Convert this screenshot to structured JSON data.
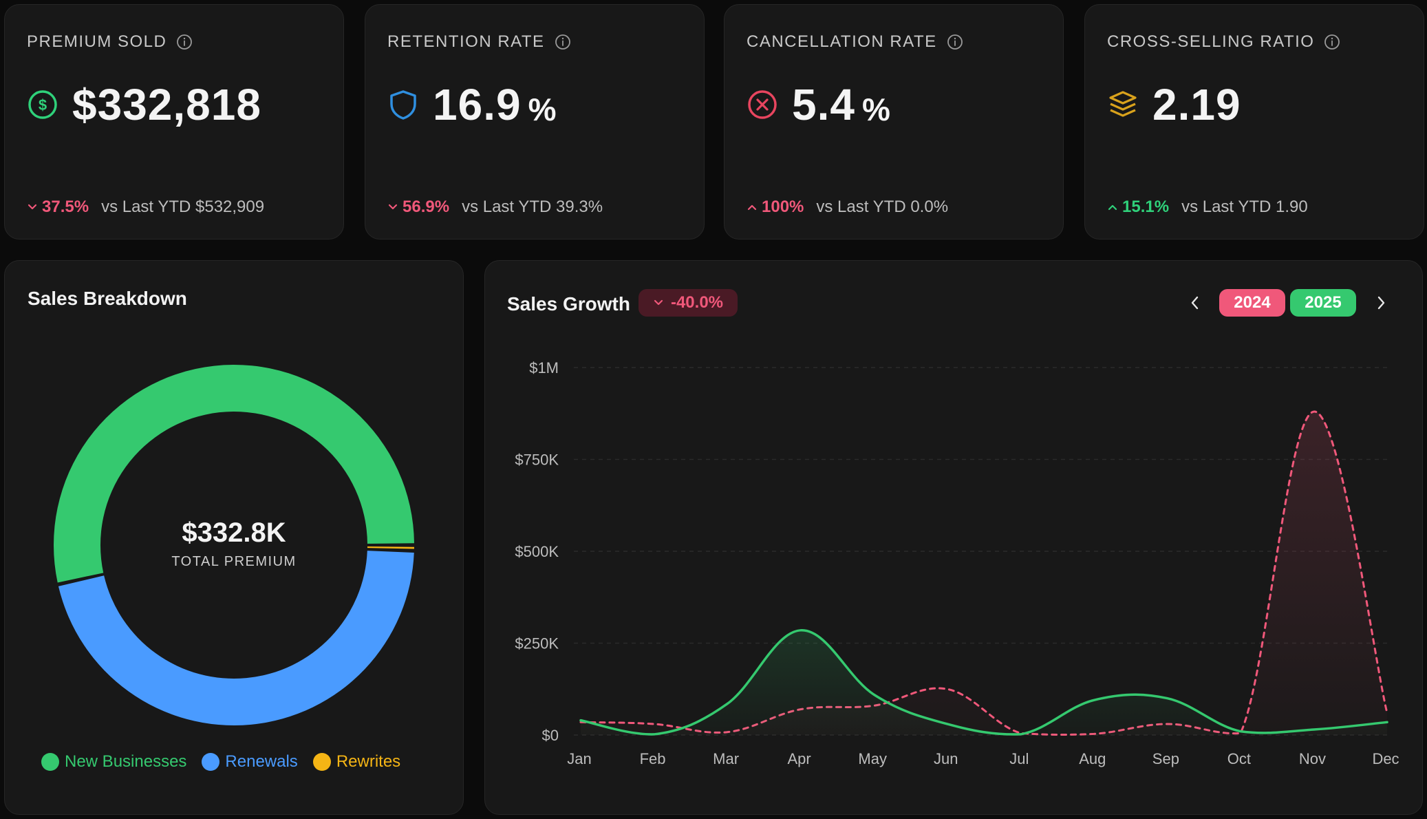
{
  "kpis": [
    {
      "title": "PREMIUM SOLD",
      "value": "$332,818",
      "unit": "",
      "icon": "dollar-circle-icon",
      "delta": "37.5%",
      "direction": "down",
      "compare": "vs Last YTD $532,909"
    },
    {
      "title": "RETENTION RATE",
      "value": "16.9",
      "unit": "%",
      "icon": "shield-icon",
      "delta": "56.9%",
      "direction": "down",
      "compare": "vs Last YTD 39.3%"
    },
    {
      "title": "CANCELLATION RATE",
      "value": "5.4",
      "unit": "%",
      "icon": "x-circle-icon",
      "delta": "100%",
      "direction": "up-bad",
      "compare": "vs Last YTD 0.0%"
    },
    {
      "title": "CROSS-SELLING RATIO",
      "value": "2.19",
      "unit": "",
      "icon": "layers-icon",
      "delta": "15.1%",
      "direction": "up",
      "compare": "vs Last YTD 1.90"
    }
  ],
  "breakdown": {
    "title": "Sales Breakdown",
    "total": "$332.8K",
    "total_label": "TOTAL PREMIUM",
    "legend": [
      {
        "label": "New Businesses",
        "color": "#35c96f"
      },
      {
        "label": "Renewals",
        "color": "#4a9bff"
      },
      {
        "label": "Rewrites",
        "color": "#f5b515"
      }
    ]
  },
  "growth": {
    "title": "Sales Growth",
    "badge": "-40.0%",
    "years": [
      "2024",
      "2025"
    ]
  },
  "colors": {
    "green": "#35c96f",
    "blue": "#4a9bff",
    "amber": "#f5b515",
    "red": "#f0587a"
  },
  "chart_data": [
    {
      "type": "pie",
      "title": "Sales Breakdown",
      "categories": [
        "New Businesses",
        "Renewals",
        "Rewrites"
      ],
      "values": [
        53.5,
        46.0,
        0.5
      ]
    },
    {
      "type": "line",
      "title": "Sales Growth",
      "categories": [
        "Jan",
        "Feb",
        "Mar",
        "Apr",
        "May",
        "Jun",
        "Jul",
        "Aug",
        "Sep",
        "Oct",
        "Nov",
        "Dec"
      ],
      "y_ticks": [
        "$0",
        "$250K",
        "$500K",
        "$750K",
        "$1M"
      ],
      "ylim": [
        0,
        1000000
      ],
      "grid": true,
      "series": [
        {
          "name": "2025",
          "color": "#35c96f",
          "style": "solid",
          "values": [
            40000,
            2000,
            85000,
            285000,
            110000,
            30000,
            2000,
            95000,
            100000,
            10000,
            15000,
            35000
          ]
        },
        {
          "name": "2024",
          "color": "#f0587a",
          "style": "dashed",
          "values": [
            35000,
            30000,
            8000,
            70000,
            80000,
            125000,
            5000,
            3000,
            30000,
            5000,
            880000,
            60000
          ]
        }
      ]
    }
  ]
}
